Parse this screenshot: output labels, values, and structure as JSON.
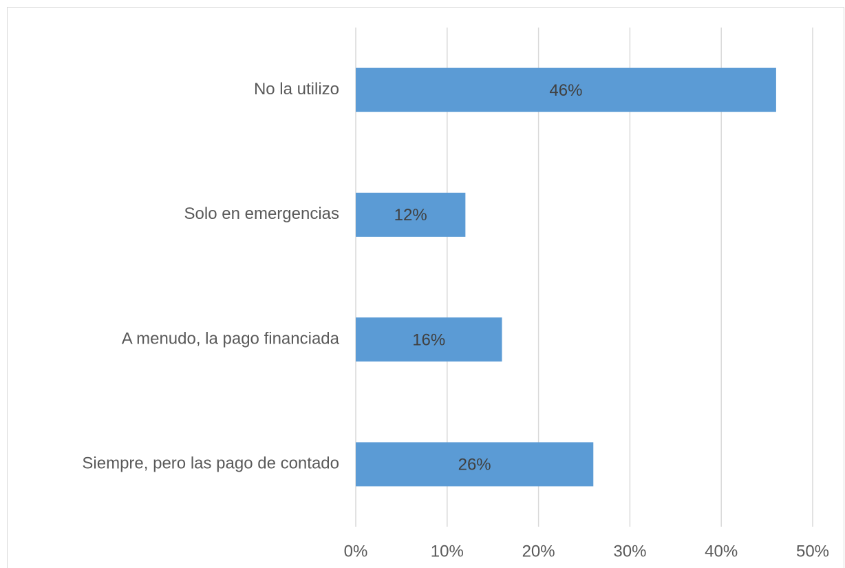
{
  "chart_data": {
    "type": "bar",
    "orientation": "horizontal",
    "categories": [
      "No la utilizo",
      "Solo en emergencias",
      "A menudo, la pago financiada",
      "Siempre, pero las pago de contado"
    ],
    "values": [
      46,
      12,
      16,
      26
    ],
    "value_labels": [
      "46%",
      "12%",
      "16%",
      "26%"
    ],
    "color": "#5b9bd5",
    "xlim": [
      0,
      50
    ],
    "xticks": [
      {
        "value": 0,
        "label": "0%"
      },
      {
        "value": 10,
        "label": "10%"
      },
      {
        "value": 20,
        "label": "20%"
      },
      {
        "value": 30,
        "label": "30%"
      },
      {
        "value": 40,
        "label": "40%"
      },
      {
        "value": 50,
        "label": "50%"
      }
    ],
    "grid": true
  }
}
